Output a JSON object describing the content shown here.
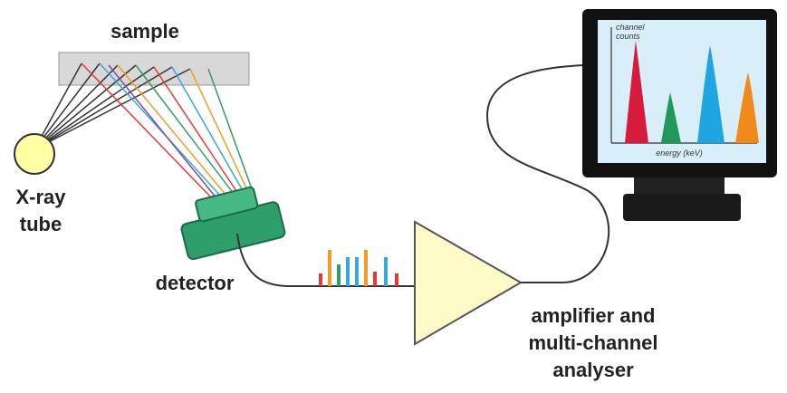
{
  "sample": {
    "label": "sample"
  },
  "source": {
    "label_lines": [
      "X-ray",
      "tube"
    ]
  },
  "detector": {
    "label": "detector"
  },
  "amplifier": {
    "label_lines": [
      "amplifier and",
      "multi-channel",
      "analyser"
    ]
  },
  "monitor": {
    "y_axis_lines": [
      "channel",
      "counts"
    ],
    "x_axis": "energy (keV)"
  }
}
